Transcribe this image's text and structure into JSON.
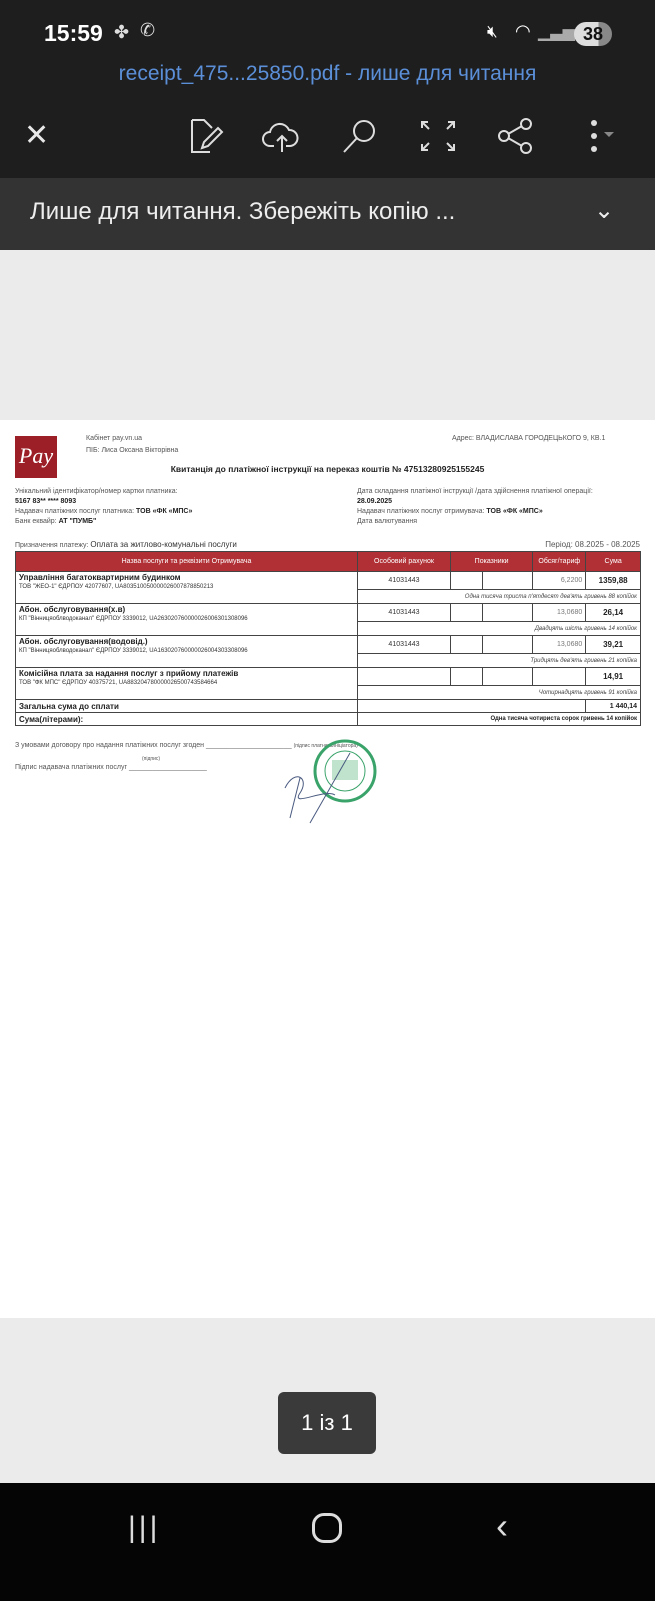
{
  "status": {
    "time": "15:59",
    "battery": "38"
  },
  "app": {
    "title": "receipt_475...25850.pdf - лише для читання",
    "banner": "Лише для читання. Збережіть копію ..."
  },
  "doc": {
    "cabinet": "Кабінет pay.vn.ua",
    "pib": "ПІБ: Лиса Оксана Вікторівна",
    "address": "Адрес: ВЛАДИСЛАВА ГОРОДЕЦЬКОГО 9, КВ.1",
    "logo_text": "Pay",
    "heading": "Квитанція до платіжної інструкції на переказ коштів № 47513280925155245",
    "id_label": "Унікальний ідентифікатор/номер картки платника:",
    "id_value": "5167 83** **** 8093",
    "payer_provider_label": "Надавач платіжних послуг платника:",
    "payer_provider": "ТОВ «ФК «МПС»",
    "bank_label": "Банк еквайр:",
    "bank": "АТ \"ПУМБ\"",
    "date_label": "Дата складання платіжної інструкції /дата здійснення платіжної операції:",
    "date": "28.09.2025",
    "recv_provider_label": "Надавач платіжних послуг отримувача:",
    "recv_provider": "ТОВ «ФК «МПС»",
    "value_date_label": "Дата валютування",
    "purpose_label": "Призначення платежу:",
    "purpose": "Оплата за житлово-комунальні послуги",
    "period": "Період: 08.2025 - 08.2025",
    "headers": [
      "Назва послуги та реквізити Отримувача",
      "Особовий рахунок",
      "Показники",
      "Обсяг/тариф",
      "Сума"
    ],
    "rows": [
      {
        "name": "Управління багатоквартирним будинком",
        "details": "ТОВ \"ЖЕО-1\"   ЄДРПОУ 42077607, UA803510050000026007878850213",
        "account": "41031443",
        "tariff": "6,2200",
        "sum": "1359,88",
        "words": "Одна тисяча триста п'ятдесят дев'ять гривень 88 копійок"
      },
      {
        "name": "Абон. обслуговування(х.в)",
        "details": "КП \"Вінницяоблводоканал\"   ЄДРПОУ 3339012, UA263020760000026006301308096",
        "account": "41031443",
        "tariff": "13,0680",
        "sum": "26,14",
        "words": "Двадцять шість гривень 14 копійок"
      },
      {
        "name": "Абон. обслуговування(водовід.)",
        "details": "КП \"Вінницяоблводоканал\"   ЄДРПОУ 3339012, UA163020760000026004303308096",
        "account": "41031443",
        "tariff": "13,0680",
        "sum": "39,21",
        "words": "Тридцять дев'ять гривень 21 копійка"
      },
      {
        "name": "Комісійна плата за надання послуг з прийому платежів",
        "details": "ТОВ \"ФК МПС\" ЄДРПОУ 40375721, UA883204780000026500743584664",
        "account": "",
        "tariff": "",
        "sum": "14,91",
        "words": "Чотирнадцять гривень 91 копійка"
      }
    ],
    "total_label": "Загальна сума до сплати",
    "total": "1 440,14",
    "words_label": "Сума(літерами):",
    "total_words": "Одна тисяча чотириста сорок гривень 14 копійок",
    "agree": "З умовами договору про надання платіжних послуг згоден ______________________",
    "agree_note": "(підпис платника/ініціатора)",
    "provider_sign": "Підпис надавача платіжних послуг ____________________",
    "sign_note": "(підпис)"
  },
  "pager": "1 із 1"
}
